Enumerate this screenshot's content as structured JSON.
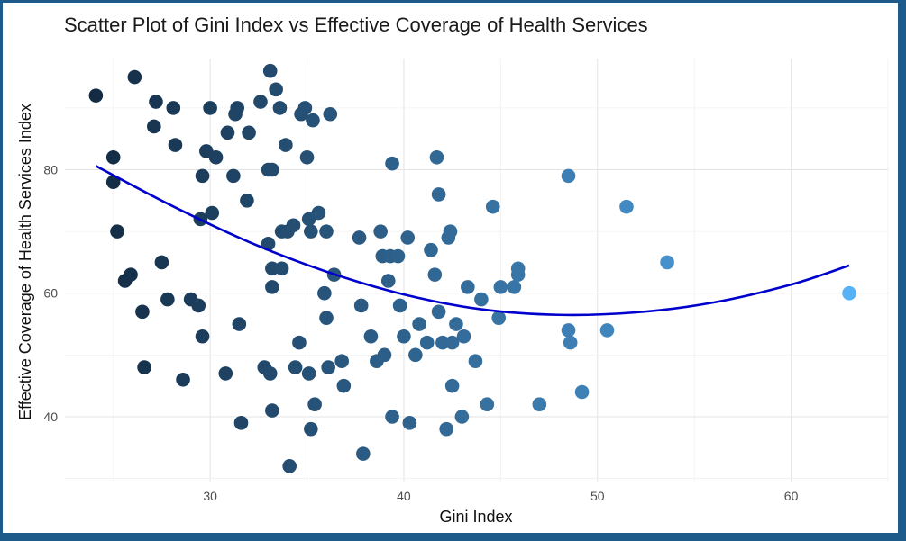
{
  "chart_data": {
    "type": "scatter",
    "title": "Scatter Plot of Gini Index vs Effective Coverage of Health Services",
    "xlabel": "Gini Index",
    "ylabel": "Effective Coverage of Health Services Index",
    "xlim": [
      22.5,
      65
    ],
    "ylim": [
      29.5,
      98
    ],
    "x_ticks": [
      30,
      40,
      50,
      60
    ],
    "x_tick_labels": [
      "30",
      "40",
      "50",
      "60"
    ],
    "y_ticks": [
      40,
      60,
      80
    ],
    "y_tick_labels": [
      "40",
      "60",
      "80"
    ],
    "grid": true,
    "legend": "none",
    "color_scale": {
      "low": "#132b43",
      "high": "#56b1f7",
      "mapped_to": "x"
    },
    "trend_color": "#0000cd",
    "trend": {
      "x": [
        24.1,
        28,
        32,
        36,
        40,
        44,
        48,
        52,
        56,
        60,
        63
      ],
      "y": [
        80.6,
        74.2,
        68.3,
        63.5,
        59.8,
        57.4,
        56.5,
        56.9,
        58.5,
        61.4,
        64.5
      ]
    },
    "points": [
      [
        24.1,
        92
      ],
      [
        25,
        82
      ],
      [
        25,
        78
      ],
      [
        25.2,
        70
      ],
      [
        25.6,
        62
      ],
      [
        25.9,
        63
      ],
      [
        26.1,
        95
      ],
      [
        26.5,
        57
      ],
      [
        26.6,
        48
      ],
      [
        27.1,
        87
      ],
      [
        27.2,
        91
      ],
      [
        27.5,
        65
      ],
      [
        27.8,
        59
      ],
      [
        28.1,
        90
      ],
      [
        28.2,
        84
      ],
      [
        28.6,
        46
      ],
      [
        29,
        59
      ],
      [
        29.4,
        58
      ],
      [
        29.5,
        72
      ],
      [
        29.6,
        79
      ],
      [
        29.6,
        53
      ],
      [
        29.8,
        83
      ],
      [
        30,
        90
      ],
      [
        30.1,
        73
      ],
      [
        30.3,
        82
      ],
      [
        30.8,
        47
      ],
      [
        30.9,
        86
      ],
      [
        31.2,
        79
      ],
      [
        31.3,
        89
      ],
      [
        31.4,
        90
      ],
      [
        31.5,
        55
      ],
      [
        31.6,
        39
      ],
      [
        31.9,
        75
      ],
      [
        32,
        86
      ],
      [
        32.6,
        91
      ],
      [
        32.8,
        48
      ],
      [
        33,
        68
      ],
      [
        33,
        80
      ],
      [
        33.1,
        47
      ],
      [
        33.1,
        96
      ],
      [
        33.2,
        80
      ],
      [
        33.2,
        61
      ],
      [
        33.2,
        64
      ],
      [
        33.2,
        41
      ],
      [
        33.4,
        93
      ],
      [
        33.6,
        90
      ],
      [
        33.7,
        70
      ],
      [
        33.7,
        64
      ],
      [
        33.9,
        84
      ],
      [
        34,
        70
      ],
      [
        34.1,
        32
      ],
      [
        34.3,
        71
      ],
      [
        34.4,
        48
      ],
      [
        34.6,
        52
      ],
      [
        34.7,
        89
      ],
      [
        34.9,
        90
      ],
      [
        35,
        82
      ],
      [
        35.1,
        72
      ],
      [
        35.1,
        47
      ],
      [
        35.2,
        70
      ],
      [
        35.2,
        38
      ],
      [
        35.3,
        88
      ],
      [
        35.4,
        42
      ],
      [
        35.6,
        73
      ],
      [
        35.9,
        60
      ],
      [
        36,
        70
      ],
      [
        36,
        56
      ],
      [
        36.1,
        48
      ],
      [
        36.2,
        89
      ],
      [
        36.4,
        63
      ],
      [
        36.8,
        49
      ],
      [
        36.9,
        45
      ],
      [
        37.7,
        69
      ],
      [
        37.8,
        58
      ],
      [
        37.9,
        34
      ],
      [
        38.3,
        53
      ],
      [
        38.6,
        49
      ],
      [
        38.8,
        70
      ],
      [
        38.9,
        66
      ],
      [
        39,
        50
      ],
      [
        39.2,
        62
      ],
      [
        39.3,
        66
      ],
      [
        39.4,
        40
      ],
      [
        39.4,
        81
      ],
      [
        39.7,
        66
      ],
      [
        39.8,
        58
      ],
      [
        40,
        53
      ],
      [
        40.2,
        69
      ],
      [
        40.3,
        39
      ],
      [
        40.6,
        50
      ],
      [
        40.8,
        55
      ],
      [
        41.2,
        52
      ],
      [
        41.4,
        67
      ],
      [
        41.6,
        63
      ],
      [
        41.7,
        82
      ],
      [
        41.8,
        57
      ],
      [
        41.8,
        76
      ],
      [
        42,
        52
      ],
      [
        42.2,
        38
      ],
      [
        42.3,
        69
      ],
      [
        42.4,
        70
      ],
      [
        42.5,
        52
      ],
      [
        42.5,
        45
      ],
      [
        42.7,
        55
      ],
      [
        43,
        40
      ],
      [
        43.1,
        53
      ],
      [
        43.3,
        61
      ],
      [
        43.7,
        49
      ],
      [
        44,
        59
      ],
      [
        44.3,
        42
      ],
      [
        44.6,
        74
      ],
      [
        44.9,
        56
      ],
      [
        45,
        61
      ],
      [
        45.7,
        61
      ],
      [
        45.9,
        63
      ],
      [
        45.9,
        64
      ],
      [
        47,
        42
      ],
      [
        48.5,
        79
      ],
      [
        48.5,
        54
      ],
      [
        48.6,
        52
      ],
      [
        49.2,
        44
      ],
      [
        50.5,
        54
      ],
      [
        51.5,
        74
      ],
      [
        53.6,
        65
      ],
      [
        63,
        60
      ]
    ]
  }
}
